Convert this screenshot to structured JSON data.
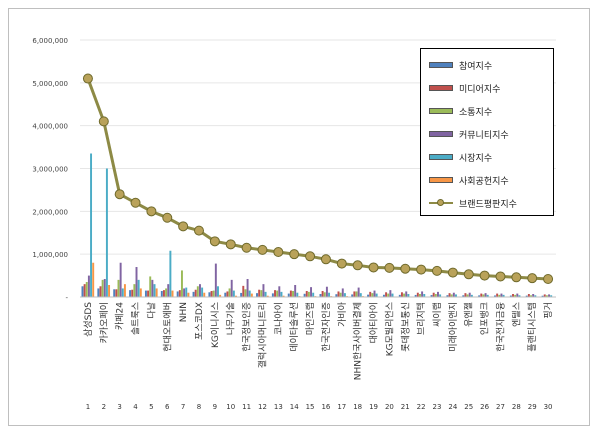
{
  "chart_data": {
    "type": "bar",
    "title": "",
    "xlabel": "",
    "ylabel": "",
    "ylim": [
      0,
      6000000
    ],
    "yticks": [
      "-",
      "1,000,000",
      "2,000,000",
      "3,000,000",
      "4,000,000",
      "5,000,000",
      "6,000,000"
    ],
    "categories": [
      "삼성SDS",
      "카카오페이",
      "카페24",
      "솔트룩스",
      "다날",
      "현대오토에버",
      "NHN",
      "포스코DX",
      "KG이니시스",
      "나무기술",
      "한국정보인증",
      "갤럭시아머니트리",
      "코나아이",
      "데이타솔루션",
      "마인즈랩",
      "한국전자인증",
      "가비아",
      "NHN한국사이버결제",
      "대아티아이",
      "KG모빌리언스",
      "롯데정보통신",
      "브리지텍",
      "씨이랩",
      "미래아이앤지",
      "유엔젤",
      "인포뱅크",
      "한국전자금융",
      "엔텔스",
      "플랜티시스템",
      "핑거"
    ],
    "ranks": [
      "1",
      "2",
      "3",
      "4",
      "5",
      "6",
      "7",
      "8",
      "9",
      "10",
      "11",
      "12",
      "13",
      "14",
      "15",
      "16",
      "17",
      "18",
      "19",
      "20",
      "21",
      "22",
      "23",
      "24",
      "25",
      "26",
      "27",
      "28",
      "29",
      "30"
    ],
    "legend_position": "top-right",
    "series": [
      {
        "name": "참여지수",
        "color": "#4f81bd",
        "type": "bar",
        "values": [
          250000,
          200000,
          180000,
          160000,
          150000,
          140000,
          130000,
          120000,
          110000,
          100000,
          95000,
          90000,
          85000,
          80000,
          75000,
          70000,
          65000,
          60000,
          55000,
          52000,
          50000,
          48000,
          45000,
          42000,
          40000,
          38000,
          36000,
          34000,
          32000,
          30000
        ]
      },
      {
        "name": "미디어지수",
        "color": "#c0504d",
        "type": "bar",
        "values": [
          300000,
          250000,
          180000,
          170000,
          150000,
          160000,
          160000,
          170000,
          140000,
          130000,
          260000,
          170000,
          160000,
          150000,
          140000,
          140000,
          130000,
          130000,
          120000,
          110000,
          110000,
          100000,
          100000,
          90000,
          90000,
          80000,
          80000,
          70000,
          70000,
          60000
        ]
      },
      {
        "name": "소통지수",
        "color": "#9bbb59",
        "type": "bar",
        "values": [
          350000,
          400000,
          400000,
          300000,
          480000,
          200000,
          620000,
          250000,
          150000,
          200000,
          180000,
          160000,
          150000,
          140000,
          120000,
          110000,
          100000,
          130000,
          90000,
          80000,
          80000,
          70000,
          70000,
          60000,
          60000,
          60000,
          50000,
          50000,
          40000,
          40000
        ]
      },
      {
        "name": "커뮤니티지수",
        "color": "#8064a2",
        "type": "bar",
        "values": [
          500000,
          420000,
          800000,
          700000,
          400000,
          300000,
          200000,
          300000,
          780000,
          400000,
          420000,
          300000,
          250000,
          280000,
          230000,
          240000,
          200000,
          220000,
          150000,
          160000,
          130000,
          130000,
          120000,
          100000,
          100000,
          90000,
          80000,
          80000,
          70000,
          60000
        ]
      },
      {
        "name": "시장지수",
        "color": "#4bacc6",
        "type": "bar",
        "values": [
          3350000,
          3000000,
          200000,
          400000,
          300000,
          1080000,
          220000,
          220000,
          250000,
          150000,
          150000,
          120000,
          120000,
          100000,
          100000,
          100000,
          90000,
          90000,
          80000,
          80000,
          70000,
          70000,
          60000,
          60000,
          50000,
          50000,
          50000,
          40000,
          40000,
          40000
        ]
      },
      {
        "name": "사회공헌지수",
        "color": "#f79646",
        "type": "bar",
        "values": [
          800000,
          280000,
          300000,
          200000,
          200000,
          150000,
          100000,
          100000,
          50000,
          30000,
          80000,
          30000,
          30000,
          20000,
          20000,
          20000,
          20000,
          20000,
          10000,
          10000,
          10000,
          10000,
          10000,
          10000,
          10000,
          10000,
          10000,
          10000,
          10000,
          10000
        ]
      },
      {
        "name": "브랜드평판지수",
        "color": "#8d8a45",
        "type": "line",
        "values": [
          5100000,
          4100000,
          2400000,
          2200000,
          2000000,
          1850000,
          1650000,
          1550000,
          1300000,
          1230000,
          1150000,
          1100000,
          1050000,
          1000000,
          950000,
          880000,
          780000,
          740000,
          690000,
          680000,
          660000,
          640000,
          610000,
          570000,
          530000,
          500000,
          480000,
          460000,
          440000,
          420000
        ]
      }
    ]
  }
}
